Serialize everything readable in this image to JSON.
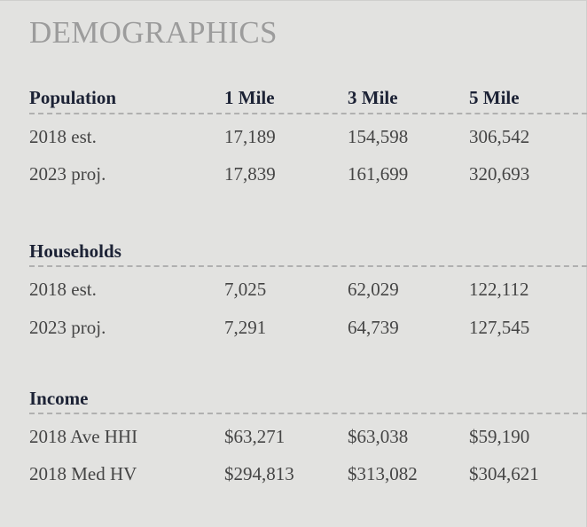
{
  "title": "DEMOGRAPHICS",
  "columns": [
    "1 Mile",
    "3 Mile",
    "5 Mile"
  ],
  "sections": [
    {
      "label": "Population",
      "rows": [
        {
          "label": "2018 est.",
          "values": [
            "17,189",
            "154,598",
            "306,542"
          ]
        },
        {
          "label": "2023 proj.",
          "values": [
            "17,839",
            "161,699",
            "320,693"
          ]
        }
      ]
    },
    {
      "label": "Households",
      "rows": [
        {
          "label": "2018 est.",
          "values": [
            "7,025",
            "62,029",
            "122,112"
          ]
        },
        {
          "label": "2023 proj.",
          "values": [
            "7,291",
            "64,739",
            "127,545"
          ]
        }
      ]
    },
    {
      "label": "Income",
      "rows": [
        {
          "label": "2018 Ave HHI",
          "values": [
            "$63,271",
            "$63,038",
            "$59,190"
          ]
        },
        {
          "label": "2018 Med HV",
          "values": [
            "$294,813",
            "$313,082",
            "$304,621"
          ]
        }
      ]
    }
  ]
}
